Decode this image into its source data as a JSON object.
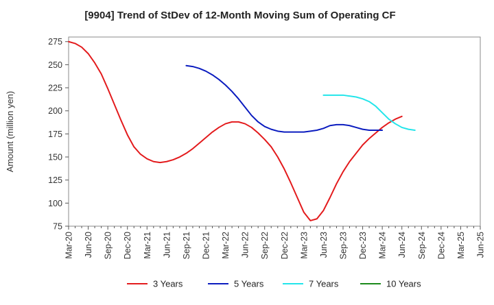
{
  "chart_data": {
    "type": "line",
    "title": "[9904]  Trend of StDev of 12-Month Moving Sum of Operating CF",
    "xlabel": "",
    "ylabel": "Amount (million yen)",
    "ylim": [
      75,
      280
    ],
    "yticks": [
      75,
      100,
      125,
      150,
      175,
      200,
      225,
      250,
      275
    ],
    "grid": false,
    "legend_position": "bottom",
    "x_tick_labels": [
      "Mar-20",
      "Jun-20",
      "Sep-20",
      "Dec-20",
      "Mar-21",
      "Jun-21",
      "Sep-21",
      "Dec-21",
      "Mar-22",
      "Jun-22",
      "Sep-22",
      "Dec-22",
      "Mar-23",
      "Jun-23",
      "Sep-23",
      "Dec-23",
      "Mar-24",
      "Jun-24",
      "Sep-24",
      "Dec-24",
      "Mar-25",
      "Jun-25"
    ],
    "series": [
      {
        "name": "3 Years",
        "color": "#e31a1c",
        "x_start_index": 0,
        "values": [
          275,
          273,
          269,
          262,
          252,
          240,
          224,
          207,
          190,
          174,
          161,
          153,
          148,
          145,
          144,
          145,
          147,
          150,
          154,
          159,
          165,
          171,
          177,
          182,
          186,
          188,
          188,
          186,
          182,
          176,
          169,
          161,
          150,
          137,
          122,
          106,
          90,
          81,
          83,
          92,
          106,
          121,
          134,
          145,
          154,
          163,
          170,
          176,
          182,
          187,
          191,
          194
        ]
      },
      {
        "name": "5 Years",
        "color": "#0a1bbf",
        "x_start_index": 18,
        "values": [
          249,
          248,
          246,
          243,
          239,
          234,
          228,
          221,
          213,
          204,
          195,
          188,
          183,
          180,
          178,
          177,
          177,
          177,
          177,
          178,
          179,
          181,
          184,
          185,
          185,
          184,
          182,
          180,
          179,
          179,
          179
        ]
      },
      {
        "name": "7 Years",
        "color": "#22e5ea",
        "x_start_index": 39,
        "values": [
          217,
          217,
          217,
          217,
          216,
          215,
          213,
          210,
          205,
          198,
          191,
          186,
          182,
          180,
          179
        ]
      },
      {
        "name": "10 Years",
        "color": "#1a8a1a",
        "x_start_index": 0,
        "values": []
      }
    ]
  }
}
